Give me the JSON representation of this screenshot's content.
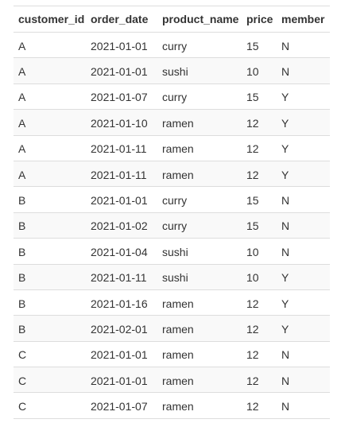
{
  "table": {
    "columns": [
      "customer_id",
      "order_date",
      "product_name",
      "price",
      "member"
    ],
    "rows": [
      [
        "A",
        "2021-01-01",
        "curry",
        "15",
        "N"
      ],
      [
        "A",
        "2021-01-01",
        "sushi",
        "10",
        "N"
      ],
      [
        "A",
        "2021-01-07",
        "curry",
        "15",
        "Y"
      ],
      [
        "A",
        "2021-01-10",
        "ramen",
        "12",
        "Y"
      ],
      [
        "A",
        "2021-01-11",
        "ramen",
        "12",
        "Y"
      ],
      [
        "A",
        "2021-01-11",
        "ramen",
        "12",
        "Y"
      ],
      [
        "B",
        "2021-01-01",
        "curry",
        "15",
        "N"
      ],
      [
        "B",
        "2021-01-02",
        "curry",
        "15",
        "N"
      ],
      [
        "B",
        "2021-01-04",
        "sushi",
        "10",
        "N"
      ],
      [
        "B",
        "2021-01-11",
        "sushi",
        "10",
        "Y"
      ],
      [
        "B",
        "2021-01-16",
        "ramen",
        "12",
        "Y"
      ],
      [
        "B",
        "2021-02-01",
        "ramen",
        "12",
        "Y"
      ],
      [
        "C",
        "2021-01-01",
        "ramen",
        "12",
        "N"
      ],
      [
        "C",
        "2021-01-01",
        "ramen",
        "12",
        "N"
      ],
      [
        "C",
        "2021-01-07",
        "ramen",
        "12",
        "N"
      ]
    ]
  }
}
